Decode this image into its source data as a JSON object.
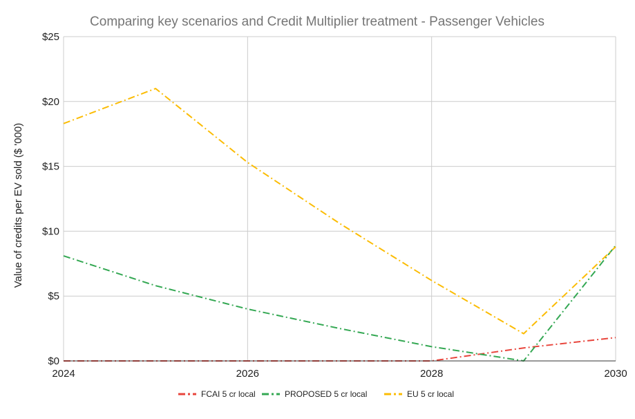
{
  "chart_data": {
    "type": "line",
    "title": "Comparing key scenarios and Credit Multiplier treatment - Passenger Vehicles",
    "xlabel": "",
    "ylabel": "Value of credits per EV sold ($ '000)",
    "x": [
      2024,
      2025,
      2026,
      2027,
      2028,
      2029,
      2030
    ],
    "xlim": [
      2024,
      2030
    ],
    "xticks": [
      "2024",
      "2026",
      "2028",
      "2030"
    ],
    "ylim": [
      0,
      25
    ],
    "yticks": [
      "$0",
      "$5",
      "$10",
      "$15",
      "$20",
      "$25"
    ],
    "grid": true,
    "legend_position": "bottom",
    "series": [
      {
        "name": "FCAI 5 cr local",
        "color": "#e8453c",
        "values": [
          0,
          0,
          0,
          0,
          0,
          1.0,
          1.8
        ]
      },
      {
        "name": "PROPOSED 5 cr local",
        "color": "#34a853",
        "values": [
          8.1,
          5.8,
          4.0,
          2.5,
          1.1,
          0,
          8.9
        ]
      },
      {
        "name": "EU 5 cr local",
        "color": "#fbbc04",
        "values": [
          18.3,
          21.0,
          15.3,
          10.6,
          6.2,
          2.1,
          8.8
        ]
      }
    ]
  }
}
